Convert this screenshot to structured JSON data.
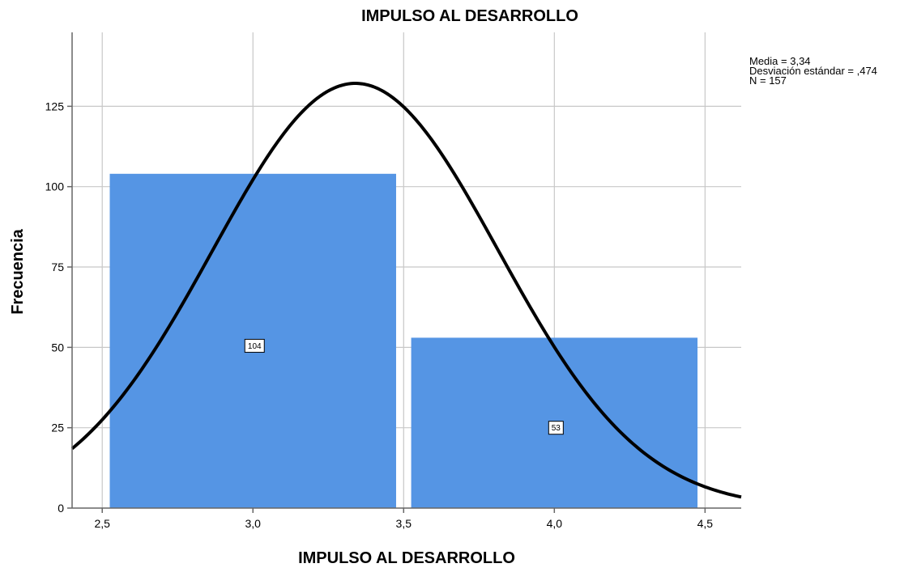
{
  "chart_data": {
    "type": "bar",
    "title": "IMPULSO AL DESARROLLO",
    "xlabel": "IMPULSO AL DESARROLLO",
    "ylabel": "Frecuencia",
    "xlim": [
      2.4,
      4.62
    ],
    "ylim": [
      0,
      148
    ],
    "x_ticks": [
      {
        "value": 2.5,
        "label": "2,5"
      },
      {
        "value": 3.0,
        "label": "3,0"
      },
      {
        "value": 3.5,
        "label": "3,5"
      },
      {
        "value": 4.0,
        "label": "4,0"
      },
      {
        "value": 4.5,
        "label": "4,5"
      }
    ],
    "y_ticks": [
      {
        "value": 0,
        "label": "0"
      },
      {
        "value": 25,
        "label": "25"
      },
      {
        "value": 50,
        "label": "50"
      },
      {
        "value": 75,
        "label": "75"
      },
      {
        "value": 100,
        "label": "100"
      },
      {
        "value": 125,
        "label": "125"
      }
    ],
    "bars": [
      {
        "x_start": 2.525,
        "x_end": 3.475,
        "value": 104,
        "label": "104"
      },
      {
        "x_start": 3.525,
        "x_end": 4.475,
        "value": 53,
        "label": "53"
      }
    ],
    "normal_curve": {
      "mean": 3.34,
      "sd": 0.474,
      "n": 157,
      "bin_width": 1.0
    },
    "stats_legend": [
      "Media = 3,34",
      "Desviación estándar = ,474",
      "N = 157"
    ],
    "grid": true,
    "legend_position": "top-right",
    "colors": {
      "bar": "#5595e4",
      "curve": "#000000",
      "grid": "#c8c8c8",
      "axis": "#666666"
    }
  }
}
